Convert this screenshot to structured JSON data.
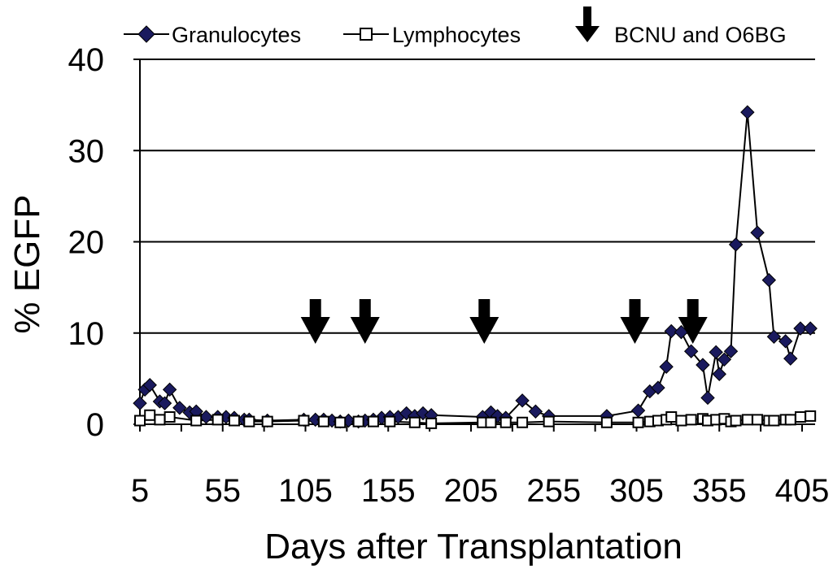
{
  "chart_data": {
    "type": "line",
    "title": "",
    "xlabel": "Days after Transplantation",
    "ylabel": "% EGFP",
    "xlim": [
      5,
      415
    ],
    "ylim": [
      0,
      40
    ],
    "xticks": [
      5,
      55,
      105,
      155,
      205,
      255,
      305,
      355,
      405
    ],
    "yticks": [
      0,
      10,
      20,
      30,
      40
    ],
    "grid": "horizontal",
    "legend": "top",
    "series": [
      {
        "name": "Granulocytes",
        "marker": "filled-diamond",
        "color": "#1a1a5e",
        "points": [
          [
            5,
            2.3
          ],
          [
            8,
            3.8
          ],
          [
            11,
            4.3
          ],
          [
            17,
            2.5
          ],
          [
            20,
            2.3
          ],
          [
            23,
            3.8
          ],
          [
            29,
            1.8
          ],
          [
            35,
            1.3
          ],
          [
            39,
            1.4
          ],
          [
            45,
            0.8
          ],
          [
            52,
            0.8
          ],
          [
            57,
            0.8
          ],
          [
            62,
            0.7
          ],
          [
            68,
            0.5
          ],
          [
            71,
            0.5
          ],
          [
            82,
            0.4
          ],
          [
            104,
            0.5
          ],
          [
            111,
            0.5
          ],
          [
            116,
            0.5
          ],
          [
            121,
            0.4
          ],
          [
            126,
            0.3
          ],
          [
            131,
            0.4
          ],
          [
            137,
            0.3
          ],
          [
            141,
            0.4
          ],
          [
            146,
            0.5
          ],
          [
            151,
            0.7
          ],
          [
            156,
            0.8
          ],
          [
            161,
            0.8
          ],
          [
            166,
            1.2
          ],
          [
            171,
            0.9
          ],
          [
            176,
            1.2
          ],
          [
            181,
            1.0
          ],
          [
            212,
            0.8
          ],
          [
            217,
            1.3
          ],
          [
            221,
            0.9
          ],
          [
            226,
            0.7
          ],
          [
            236,
            2.6
          ],
          [
            244,
            1.4
          ],
          [
            252,
            0.9
          ],
          [
            287,
            0.9
          ],
          [
            306,
            1.5
          ],
          [
            313,
            3.6
          ],
          [
            318,
            4.0
          ],
          [
            323,
            6.3
          ],
          [
            326,
            10.2
          ],
          [
            332,
            10.1
          ],
          [
            338,
            8.0
          ],
          [
            345,
            6.5
          ],
          [
            348,
            2.9
          ],
          [
            353,
            7.9
          ],
          [
            355,
            5.5
          ],
          [
            358,
            7.1
          ],
          [
            362,
            8.0
          ],
          [
            365,
            19.7
          ],
          [
            372,
            34.2
          ],
          [
            378,
            21.0
          ],
          [
            385,
            15.8
          ],
          [
            388,
            9.6
          ],
          [
            395,
            9.1
          ],
          [
            398,
            7.2
          ],
          [
            404,
            10.5
          ],
          [
            410,
            10.5
          ]
        ]
      },
      {
        "name": "Lymphocytes",
        "marker": "open-square",
        "color": "#000000",
        "points": [
          [
            5,
            0.4
          ],
          [
            11,
            1.0
          ],
          [
            17,
            0.5
          ],
          [
            23,
            0.8
          ],
          [
            39,
            0.4
          ],
          [
            52,
            0.5
          ],
          [
            62,
            0.4
          ],
          [
            71,
            0.3
          ],
          [
            82,
            0.3
          ],
          [
            104,
            0.4
          ],
          [
            116,
            0.3
          ],
          [
            126,
            0.2
          ],
          [
            137,
            0.3
          ],
          [
            146,
            0.3
          ],
          [
            156,
            0.3
          ],
          [
            171,
            0.2
          ],
          [
            181,
            0.1
          ],
          [
            212,
            0.2
          ],
          [
            217,
            0.2
          ],
          [
            226,
            0.2
          ],
          [
            236,
            0.2
          ],
          [
            252,
            0.3
          ],
          [
            287,
            0.2
          ],
          [
            306,
            0.2
          ],
          [
            313,
            0.3
          ],
          [
            318,
            0.4
          ],
          [
            323,
            0.5
          ],
          [
            326,
            0.8
          ],
          [
            332,
            0.4
          ],
          [
            338,
            0.5
          ],
          [
            345,
            0.6
          ],
          [
            348,
            0.4
          ],
          [
            353,
            0.5
          ],
          [
            358,
            0.6
          ],
          [
            362,
            0.3
          ],
          [
            365,
            0.4
          ],
          [
            372,
            0.5
          ],
          [
            378,
            0.5
          ],
          [
            385,
            0.4
          ],
          [
            388,
            0.4
          ],
          [
            395,
            0.5
          ],
          [
            398,
            0.5
          ],
          [
            404,
            0.8
          ],
          [
            410,
            0.9
          ]
        ]
      }
    ],
    "annotations": {
      "name": "BCNU and O6BG",
      "marker": "down-arrow",
      "x": [
        111,
        141,
        213,
        304,
        339
      ]
    }
  }
}
